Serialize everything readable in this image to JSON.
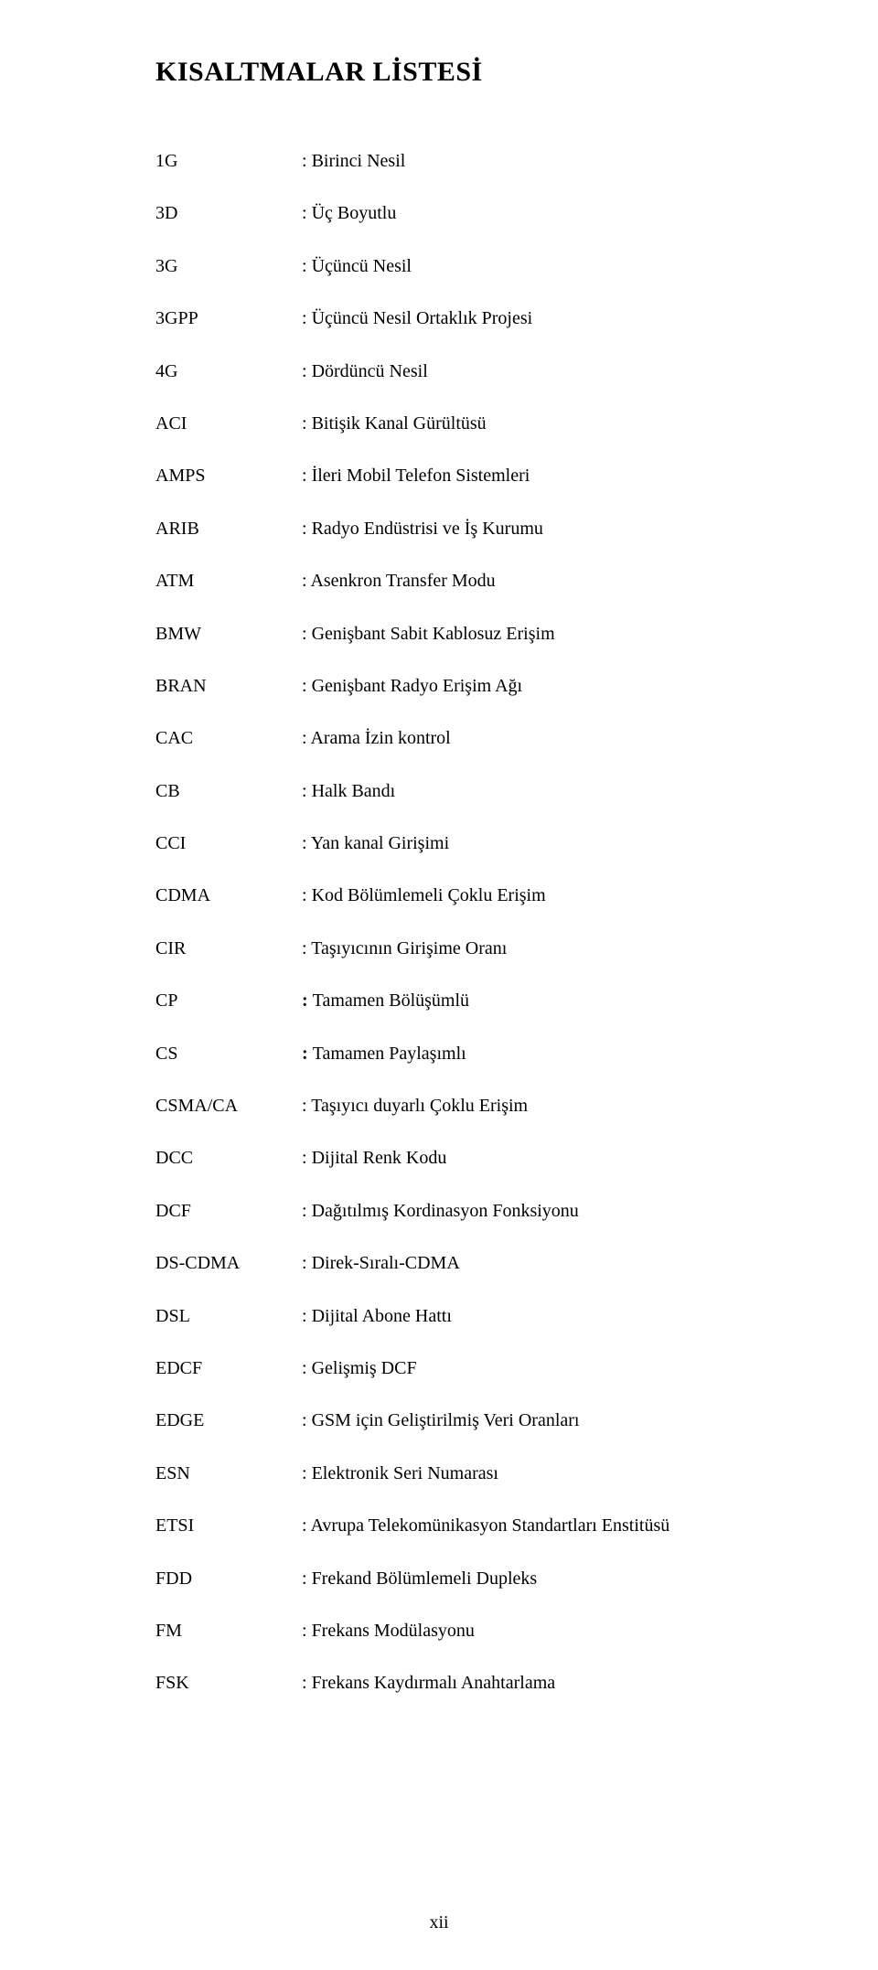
{
  "title": "KISALTMALAR LİSTESİ",
  "rows": [
    {
      "abbr": "1G",
      "def": "Birinci Nesil"
    },
    {
      "abbr": "3D",
      "def": "Üç Boyutlu"
    },
    {
      "abbr": "3G",
      "def": "Üçüncü Nesil"
    },
    {
      "abbr": "3GPP",
      "def": "Üçüncü Nesil Ortaklık Projesi"
    },
    {
      "abbr": "4G",
      "def": "Dördüncü Nesil"
    },
    {
      "abbr": "ACI",
      "def": "Bitişik Kanal Gürültüsü"
    },
    {
      "abbr": "AMPS",
      "def": "İleri Mobil Telefon Sistemleri"
    },
    {
      "abbr": "ARIB",
      "def": "Radyo Endüstrisi ve İş Kurumu"
    },
    {
      "abbr": "ATM",
      "def": "Asenkron Transfer Modu"
    },
    {
      "abbr": "BMW",
      "def": "Genişbant Sabit Kablosuz Erişim"
    },
    {
      "abbr": "BRAN",
      "def": "Genişbant Radyo Erişim Ağı"
    },
    {
      "abbr": "CAC",
      "def": "Arama İzin kontrol"
    },
    {
      "abbr": "CB",
      "def": "Halk Bandı"
    },
    {
      "abbr": "CCI",
      "def": "Yan kanal Girişimi"
    },
    {
      "abbr": "CDMA",
      "def": "Kod Bölümlemeli Çoklu Erişim"
    },
    {
      "abbr": "CIR",
      "def": "Taşıyıcının Girişime Oranı"
    },
    {
      "abbr": "CP",
      "def": "Tamamen Bölüşümlü",
      "bold": true
    },
    {
      "abbr": "CS",
      "def": "Tamamen Paylaşımlı",
      "bold": true
    },
    {
      "abbr": "CSMA/CA",
      "def": "Taşıyıcı duyarlı Çoklu Erişim"
    },
    {
      "abbr": "DCC",
      "def": "Dijital Renk Kodu"
    },
    {
      "abbr": "DCF",
      "def": "Dağıtılmış Kordinasyon Fonksiyonu"
    },
    {
      "abbr": "DS-CDMA",
      "def": "Direk-Sıralı-CDMA"
    },
    {
      "abbr": "DSL",
      "def": "Dijital Abone Hattı"
    },
    {
      "abbr": "EDCF",
      "def": "Gelişmiş DCF"
    },
    {
      "abbr": "EDGE",
      "def": "GSM için Geliştirilmiş Veri Oranları"
    },
    {
      "abbr": "ESN",
      "def": "Elektronik Seri Numarası"
    },
    {
      "abbr": "ETSI",
      "def": "Avrupa Telekomünikasyon Standartları Enstitüsü"
    },
    {
      "abbr": "FDD",
      "def": "Frekand Bölümlemeli Dupleks"
    },
    {
      "abbr": "FM",
      "def": "Frekans Modülasyonu"
    },
    {
      "abbr": "FSK",
      "def": "Frekans Kaydırmalı Anahtarlama"
    }
  ],
  "page_number": "xii",
  "colors": {
    "text": "#000000",
    "background": "#ffffff"
  },
  "fonts": {
    "family": "Times New Roman",
    "title_size_pt": 22,
    "body_size_pt": 15
  }
}
